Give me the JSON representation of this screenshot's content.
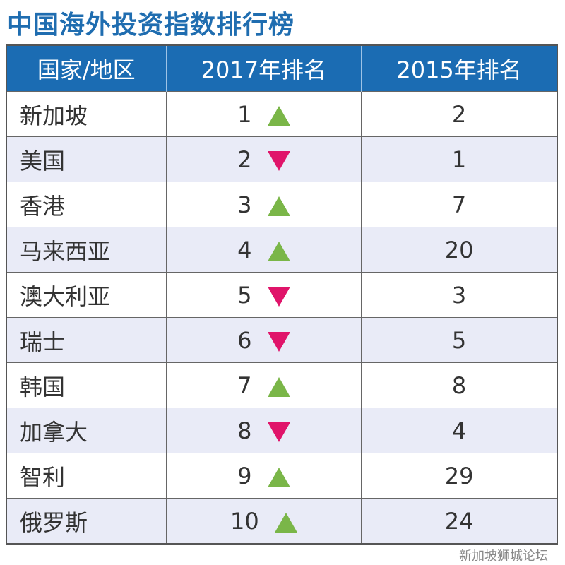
{
  "title": "中国海外投资指数排行榜",
  "headers": [
    "国家/地区",
    "2017年排名",
    "2015年排名"
  ],
  "rows": [
    {
      "name": "新加坡",
      "r2017": "1",
      "trend": "up",
      "r2015": "2"
    },
    {
      "name": "美国",
      "r2017": "2",
      "trend": "down",
      "r2015": "1"
    },
    {
      "name": "香港",
      "r2017": "3",
      "trend": "up",
      "r2015": "7"
    },
    {
      "name": "马来西亚",
      "r2017": "4",
      "trend": "up",
      "r2015": "20"
    },
    {
      "name": "澳大利亚",
      "r2017": "5",
      "trend": "down",
      "r2015": "3"
    },
    {
      "name": "瑞士",
      "r2017": "6",
      "trend": "down",
      "r2015": "5"
    },
    {
      "name": "韩国",
      "r2017": "7",
      "trend": "up",
      "r2015": "8"
    },
    {
      "name": "加拿大",
      "r2017": "8",
      "trend": "down",
      "r2015": "4"
    },
    {
      "name": "智利",
      "r2017": "9",
      "trend": "up",
      "r2015": "29"
    },
    {
      "name": "俄罗斯",
      "r2017": "10",
      "trend": "up",
      "r2015": "24"
    }
  ],
  "watermark": "新加坡狮城论坛",
  "colors": {
    "header": "#1b6cb3",
    "up": "#7ab648",
    "down": "#e0146a"
  }
}
